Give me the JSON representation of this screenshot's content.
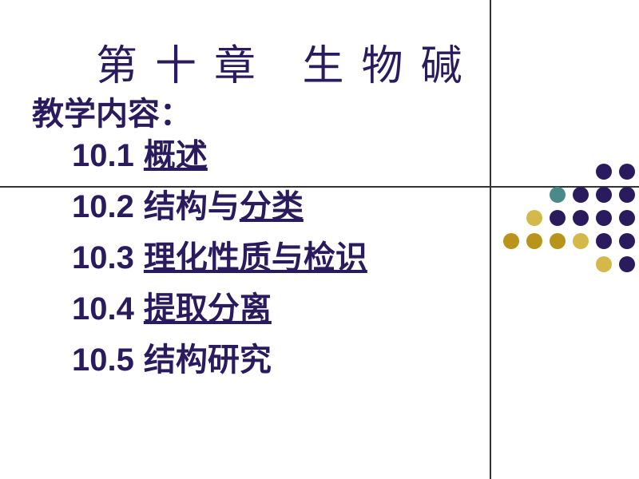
{
  "title": "第十章  生物碱",
  "subtitle": "教学内容：",
  "toc": [
    {
      "number": "10.1",
      "text": "概述",
      "underline": true
    },
    {
      "number": "10.2",
      "text_parts": [
        {
          "t": "结构与",
          "u": false
        },
        {
          "t": "分类",
          "u": true
        }
      ]
    },
    {
      "number": "10.3",
      "text": "理化性质与检识",
      "underline": true
    },
    {
      "number": "10.4",
      "text": "提取分离",
      "underline": true
    },
    {
      "number": "10.5",
      "text": "结构研究",
      "underline": false
    }
  ],
  "colors": {
    "title_color": "#2a1a5e",
    "background": "#ffffff",
    "line_color": "#333333"
  },
  "dot_grid": {
    "rows": 5,
    "cols": 6,
    "colors": [
      [
        "transparent",
        "transparent",
        "transparent",
        "transparent",
        "#2a1a5e",
        "#2a1a5e"
      ],
      [
        "transparent",
        "transparent",
        "#4a8a8a",
        "#2a1a5e",
        "#2a1a5e",
        "#2a1a5e"
      ],
      [
        "transparent",
        "#d4b84a",
        "#2a1a5e",
        "#2a1a5e",
        "#2a1a5e",
        "#2a1a5e"
      ],
      [
        "#b8941a",
        "#b8941a",
        "#b8941a",
        "#d4b84a",
        "#2a1a5e",
        "#2a1a5e"
      ],
      [
        "transparent",
        "transparent",
        "transparent",
        "transparent",
        "#d4b84a",
        "#2a1a5e"
      ]
    ]
  }
}
